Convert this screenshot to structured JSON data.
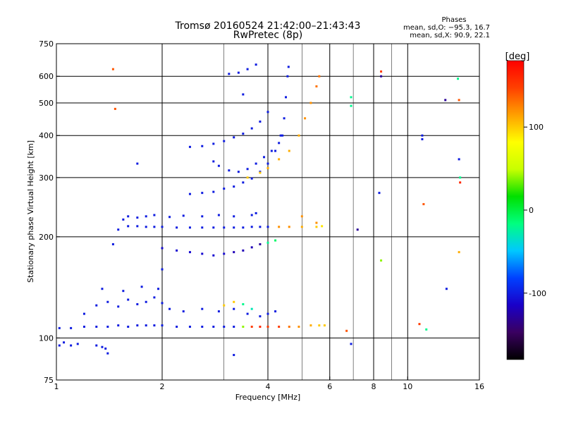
{
  "title_line1": "Tromsø 20160524 21:42:00–21:43:43",
  "title_line2": "RwPretec (8p)",
  "phases": {
    "heading": "Phases",
    "o_line": "mean, sd,O: −95.3, 16.7",
    "x_line": "mean, sd,X:  90.9, 22.1"
  },
  "chart_data": {
    "type": "scatter",
    "xlabel": "Frequency [MHz]",
    "ylabel": "Stationary phase Virtual Height [km]",
    "xscale": "log",
    "yscale": "log",
    "xlim": [
      1,
      16
    ],
    "ylim": [
      75,
      750
    ],
    "x_ticks": [
      {
        "v": 1,
        "label": "1"
      },
      {
        "v": 2,
        "label": "2"
      },
      {
        "v": 4,
        "label": "4"
      },
      {
        "v": 6,
        "label": "6"
      },
      {
        "v": 8,
        "label": "8"
      },
      {
        "v": 10,
        "label": "10"
      },
      {
        "v": 16,
        "label": "16"
      }
    ],
    "y_ticks": [
      {
        "v": 75,
        "label": "75"
      },
      {
        "v": 100,
        "label": "100"
      },
      {
        "v": 200,
        "label": "200"
      },
      {
        "v": 300,
        "label": "300"
      },
      {
        "v": 400,
        "label": "400"
      },
      {
        "v": 500,
        "label": "500"
      },
      {
        "v": 600,
        "label": "600"
      },
      {
        "v": 750,
        "label": "750"
      }
    ],
    "x_grid": [
      2,
      4,
      6,
      8,
      10
    ],
    "x_grid_minor": [
      3,
      5,
      7,
      9
    ],
    "y_grid": [
      100,
      200,
      300,
      400,
      500,
      600
    ],
    "grid": true,
    "colorbar": {
      "label": "[deg]",
      "min": -180,
      "max": 180,
      "ticks": [
        {
          "v": 100,
          "label": "100"
        },
        {
          "v": 0,
          "label": "0"
        },
        {
          "v": -100,
          "label": "-100"
        }
      ],
      "stops": [
        "#000000",
        "#3a0060",
        "#1a00c8",
        "#0040ff",
        "#00c8ff",
        "#00ff80",
        "#00e000",
        "#c8ff00",
        "#ffff00",
        "#ffa000",
        "#ff4000",
        "#ff0000"
      ]
    },
    "series": [
      {
        "points": [
          [
            1.02,
            107
          ],
          [
            1.1,
            107
          ],
          [
            1.2,
            108
          ],
          [
            1.3,
            108
          ],
          [
            1.4,
            108
          ],
          [
            1.5,
            109
          ],
          [
            1.6,
            108
          ],
          [
            1.7,
            109
          ],
          [
            1.8,
            109
          ],
          [
            1.9,
            109
          ],
          [
            2.0,
            109
          ],
          [
            2.2,
            108
          ],
          [
            2.4,
            108
          ],
          [
            2.6,
            108
          ],
          [
            2.8,
            108
          ],
          [
            3.0,
            108
          ],
          [
            3.2,
            108
          ],
          [
            3.4,
            108
          ],
          [
            3.6,
            108
          ],
          [
            3.8,
            108
          ],
          [
            4.0,
            108
          ],
          [
            4.3,
            108
          ],
          [
            4.6,
            108
          ],
          [
            4.9,
            108
          ],
          [
            5.3,
            109
          ],
          [
            5.6,
            109
          ],
          [
            5.8,
            109
          ]
        ],
        "colors": [
          -100,
          -100,
          -100,
          -100,
          -100,
          -100,
          -100,
          -100,
          -100,
          -100,
          -100,
          -100,
          -100,
          -100,
          -100,
          -100,
          -100,
          40,
          150,
          160,
          150,
          150,
          130,
          120,
          110,
          100,
          100
        ]
      },
      {
        "points": [
          [
            1.02,
            95
          ],
          [
            1.1,
            95
          ],
          [
            1.15,
            96
          ],
          [
            1.3,
            95
          ],
          [
            1.35,
            94
          ],
          [
            1.38,
            93
          ],
          [
            1.05,
            97
          ]
        ],
        "colors": [
          -100,
          -100,
          -100,
          -100,
          -100,
          -100,
          -100
        ]
      },
      {
        "points": [
          [
            1.5,
            210
          ],
          [
            1.6,
            215
          ],
          [
            1.7,
            215
          ],
          [
            1.8,
            214
          ],
          [
            1.9,
            214
          ],
          [
            2.0,
            214
          ],
          [
            2.2,
            213
          ],
          [
            2.4,
            213
          ],
          [
            2.6,
            213
          ],
          [
            2.8,
            213
          ],
          [
            3.0,
            213
          ],
          [
            3.2,
            213
          ],
          [
            3.4,
            213
          ],
          [
            3.6,
            214
          ],
          [
            3.8,
            214
          ],
          [
            4.0,
            214
          ],
          [
            4.3,
            214
          ],
          [
            4.6,
            214
          ],
          [
            5.0,
            214
          ],
          [
            5.5,
            214
          ],
          [
            5.7,
            215
          ]
        ],
        "colors": [
          -100,
          -100,
          -100,
          -100,
          -100,
          -100,
          -100,
          -100,
          -100,
          -100,
          -100,
          -100,
          -100,
          -100,
          -100,
          -100,
          120,
          120,
          110,
          100,
          90
        ]
      },
      {
        "points": [
          [
            1.55,
            225
          ],
          [
            1.6,
            230
          ],
          [
            1.7,
            228
          ],
          [
            1.8,
            230
          ],
          [
            1.9,
            232
          ],
          [
            2.1,
            229
          ],
          [
            2.3,
            231
          ],
          [
            2.6,
            230
          ],
          [
            2.9,
            232
          ],
          [
            3.2,
            230
          ],
          [
            3.6,
            232
          ],
          [
            3.7,
            235
          ]
        ],
        "colors": [
          -100,
          -100,
          -100,
          -100,
          -100,
          -100,
          -100,
          -100,
          -100,
          -100,
          -100,
          -100
        ]
      },
      {
        "points": [
          [
            2.4,
            268
          ],
          [
            2.6,
            270
          ],
          [
            2.8,
            272
          ],
          [
            3.0,
            278
          ],
          [
            3.2,
            282
          ],
          [
            3.4,
            290
          ],
          [
            3.6,
            298
          ],
          [
            3.8,
            312
          ],
          [
            4.0,
            330
          ],
          [
            4.2,
            360
          ],
          [
            4.35,
            400
          ],
          [
            4.45,
            450
          ],
          [
            4.5,
            520
          ],
          [
            4.55,
            600
          ],
          [
            4.58,
            640
          ]
        ],
        "colors": [
          -100,
          -100,
          -100,
          -100,
          -100,
          -100,
          -100,
          -100,
          -100,
          -100,
          -100,
          -100,
          -100,
          -100,
          -100
        ]
      },
      {
        "points": [
          [
            2.8,
            335
          ],
          [
            2.9,
            325
          ],
          [
            3.1,
            315
          ],
          [
            3.3,
            312
          ],
          [
            3.5,
            318
          ],
          [
            3.7,
            330
          ],
          [
            3.9,
            345
          ],
          [
            4.1,
            360
          ],
          [
            4.3,
            380
          ],
          [
            4.4,
            400
          ]
        ],
        "colors": [
          -100,
          -100,
          -100,
          -100,
          -100,
          -100,
          -100,
          -100,
          -100,
          -100
        ]
      },
      {
        "points": [
          [
            3.5,
            300
          ],
          [
            3.8,
            310
          ],
          [
            4.0,
            320
          ],
          [
            4.3,
            340
          ],
          [
            4.6,
            360
          ],
          [
            4.9,
            400
          ],
          [
            5.1,
            450
          ],
          [
            5.3,
            500
          ],
          [
            5.5,
            560
          ],
          [
            5.6,
            600
          ]
        ],
        "colors": [
          100,
          100,
          110,
          110,
          110,
          110,
          120,
          120,
          130,
          130
        ]
      },
      {
        "points": [
          [
            2.4,
            370
          ],
          [
            2.6,
            372
          ],
          [
            2.8,
            378
          ],
          [
            3.0,
            385
          ],
          [
            3.2,
            395
          ],
          [
            3.4,
            405
          ],
          [
            3.6,
            420
          ],
          [
            3.8,
            440
          ],
          [
            4.0,
            470
          ]
        ],
        "colors": [
          -100,
          -100,
          -100,
          -100,
          -100,
          -100,
          -100,
          -100,
          -100
        ]
      },
      {
        "points": [
          [
            3.1,
            610
          ],
          [
            3.3,
            615
          ],
          [
            3.5,
            630
          ],
          [
            3.7,
            650
          ],
          [
            3.4,
            530
          ]
        ],
        "colors": [
          -100,
          -100,
          -100,
          -100,
          -100
        ]
      },
      {
        "points": [
          [
            2.0,
            185
          ],
          [
            2.2,
            182
          ],
          [
            2.4,
            180
          ],
          [
            2.6,
            178
          ],
          [
            2.8,
            176
          ],
          [
            3.0,
            178
          ],
          [
            3.2,
            180
          ],
          [
            3.4,
            182
          ],
          [
            3.6,
            186
          ],
          [
            3.8,
            190
          ],
          [
            4.0,
            192
          ],
          [
            4.2,
            195
          ]
        ],
        "colors": [
          -110,
          -110,
          -110,
          -110,
          -110,
          -110,
          -120,
          -120,
          -120,
          -130,
          -20,
          -10
        ]
      },
      {
        "points": [
          [
            1.2,
            118
          ],
          [
            1.3,
            125
          ],
          [
            1.4,
            128
          ],
          [
            1.5,
            124
          ],
          [
            1.6,
            130
          ],
          [
            1.7,
            126
          ],
          [
            1.8,
            128
          ],
          [
            1.9,
            132
          ],
          [
            2.0,
            127
          ],
          [
            2.1,
            122
          ],
          [
            2.3,
            120
          ],
          [
            2.6,
            122
          ],
          [
            2.9,
            120
          ],
          [
            3.2,
            122
          ],
          [
            3.5,
            118
          ],
          [
            1.35,
            140
          ],
          [
            1.55,
            138
          ],
          [
            1.75,
            142
          ],
          [
            1.95,
            140
          ]
        ],
        "colors": [
          -100,
          -100,
          -100,
          -100,
          -100,
          -100,
          -100,
          -100,
          -100,
          -100,
          -100,
          -100,
          -100,
          -100,
          -100,
          -100,
          -100,
          -100,
          -100
        ]
      },
      {
        "points": [
          [
            3.0,
            125
          ],
          [
            3.2,
            128
          ],
          [
            3.4,
            126
          ],
          [
            3.6,
            122
          ],
          [
            3.8,
            116
          ],
          [
            4.0,
            118
          ],
          [
            4.2,
            120
          ]
        ],
        "colors": [
          100,
          100,
          -20,
          -30,
          -100,
          -100,
          -100
        ]
      },
      {
        "points": [
          [
            1.45,
            630
          ],
          [
            1.47,
            480
          ],
          [
            6.9,
            520
          ],
          [
            6.9,
            490
          ],
          [
            8.4,
            620
          ],
          [
            8.4,
            600
          ],
          [
            11.0,
            400
          ],
          [
            11.0,
            390
          ],
          [
            12.8,
            510
          ],
          [
            13.9,
            590
          ],
          [
            14.0,
            510
          ],
          [
            14.0,
            340
          ],
          [
            14.1,
            300
          ],
          [
            14.1,
            290
          ],
          [
            14.0,
            180
          ],
          [
            12.9,
            140
          ],
          [
            11.1,
            250
          ],
          [
            10.8,
            110
          ],
          [
            11.3,
            106
          ],
          [
            8.3,
            270
          ],
          [
            8.4,
            170
          ],
          [
            6.7,
            105
          ],
          [
            6.9,
            96
          ],
          [
            7.2,
            210
          ],
          [
            5.5,
            220
          ],
          [
            5.0,
            230
          ],
          [
            3.2,
            89
          ],
          [
            2.0,
            160
          ],
          [
            1.7,
            330
          ],
          [
            1.45,
            190
          ],
          [
            1.4,
            90
          ]
        ],
        "colors": [
          140,
          140,
          -20,
          -20,
          150,
          -130,
          -100,
          -100,
          -130,
          -20,
          140,
          -100,
          -20,
          160,
          110,
          -100,
          140,
          150,
          -20,
          -100,
          40,
          140,
          -100,
          -130,
          120,
          120,
          -100,
          -100,
          -100,
          -100,
          -100
        ]
      }
    ]
  }
}
